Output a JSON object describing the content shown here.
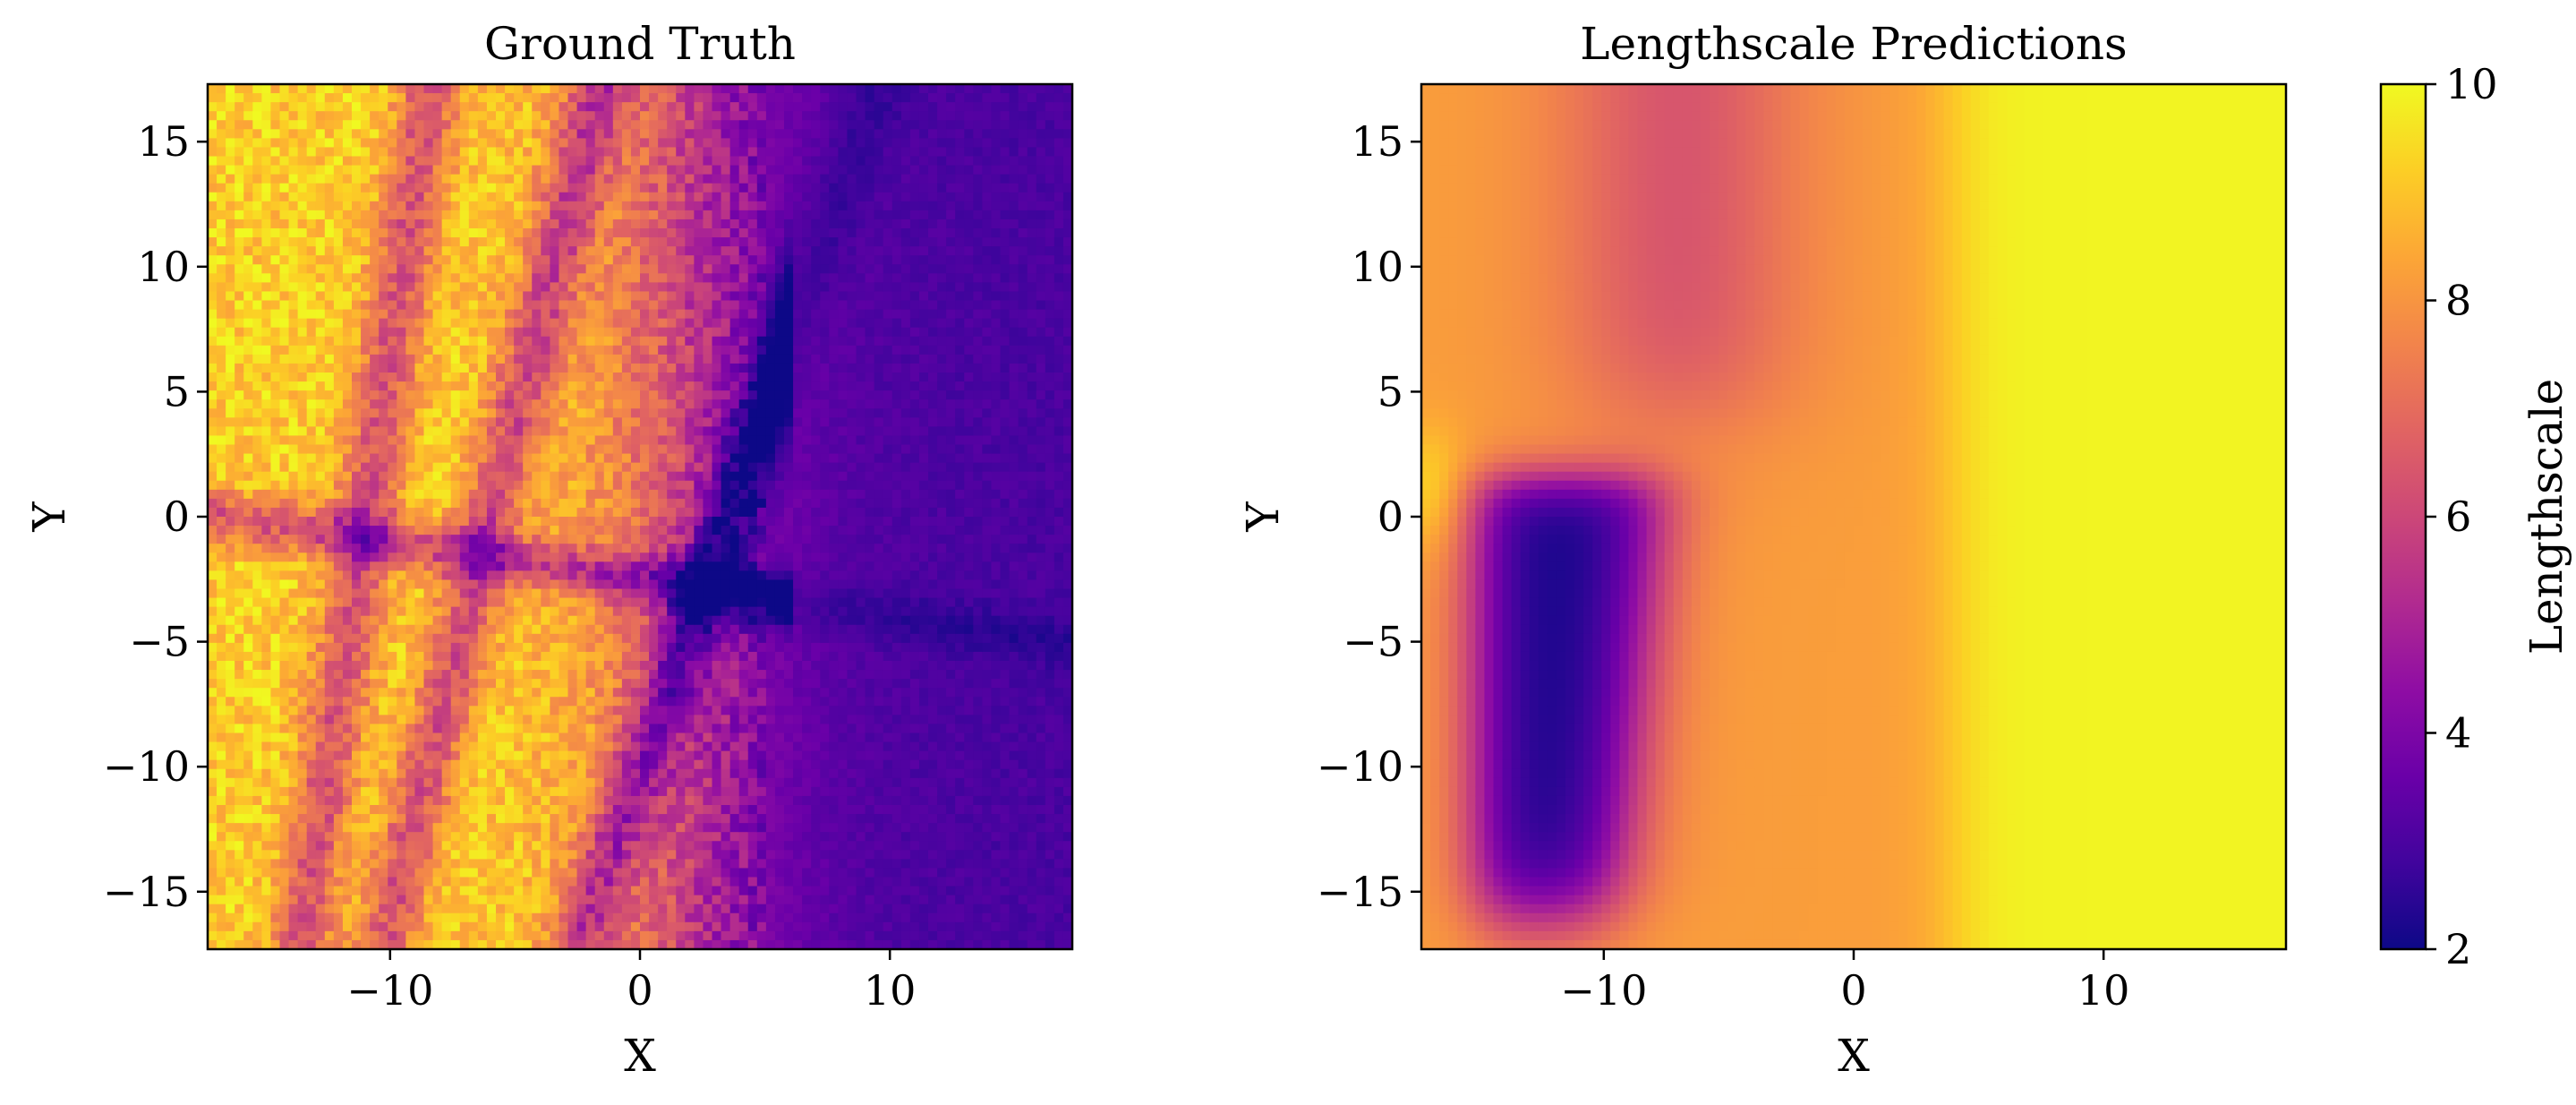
{
  "chart_data": [
    {
      "type": "heatmap",
      "title": "Ground Truth",
      "xlabel": "X",
      "ylabel": "Y",
      "xlim": [
        -17.3,
        17.3
      ],
      "ylim": [
        -17.3,
        17.3
      ],
      "xticks": [
        -10,
        0,
        10
      ],
      "xtick_labels": [
        "−10",
        "0",
        "10"
      ],
      "yticks": [
        -15,
        -10,
        -5,
        0,
        5,
        10,
        15
      ],
      "ytick_labels": [
        "−15",
        "−10",
        "−5",
        "0",
        "5",
        "10",
        "15"
      ],
      "colormap": "plasma",
      "grid": false,
      "description_of_field": {
        "high_region": "western half (x < 0) with bright yellow ridges",
        "valleys": "dark drainage channels in the west",
        "low_region": "eastern half (x > 5) uniformly dark purple"
      }
    },
    {
      "type": "heatmap",
      "title": "Lengthscale Predictions",
      "xlabel": "X",
      "ylabel": "Y",
      "xlim": [
        -17.3,
        17.3
      ],
      "ylim": [
        -17.3,
        17.3
      ],
      "xticks": [
        -10,
        0,
        10
      ],
      "xtick_labels": [
        "−10",
        "0",
        "10"
      ],
      "yticks": [
        -15,
        -10,
        -5,
        0,
        5,
        10,
        15
      ],
      "ytick_labels": [
        "−15",
        "−10",
        "−5",
        "0",
        "5",
        "10",
        "15"
      ],
      "colormap": "plasma",
      "grid": false,
      "colorbar": {
        "label": "Lengthscale",
        "range": [
          2,
          10
        ],
        "ticks": [
          2,
          4,
          6,
          8,
          10
        ],
        "tick_labels": [
          "2",
          "4",
          "6",
          "8",
          "10"
        ]
      },
      "regions": [
        {
          "description": "eastern plateau",
          "x_range": [
            4,
            17.3
          ],
          "y_range": [
            -17.3,
            17.3
          ],
          "value": 9.9
        },
        {
          "description": "low lengthscale pocket",
          "x_range": [
            -15,
            -8
          ],
          "y_range": [
            -16,
            1.5
          ],
          "value": 2.2
        },
        {
          "description": "northwest band",
          "x_range": [
            -12,
            -3
          ],
          "y_range": [
            5,
            17.3
          ],
          "value": 6.4
        },
        {
          "description": "central / southern belt",
          "x_range": [
            -7,
            4
          ],
          "y_range": [
            -17.3,
            2
          ],
          "value": 8.2
        }
      ]
    }
  ]
}
